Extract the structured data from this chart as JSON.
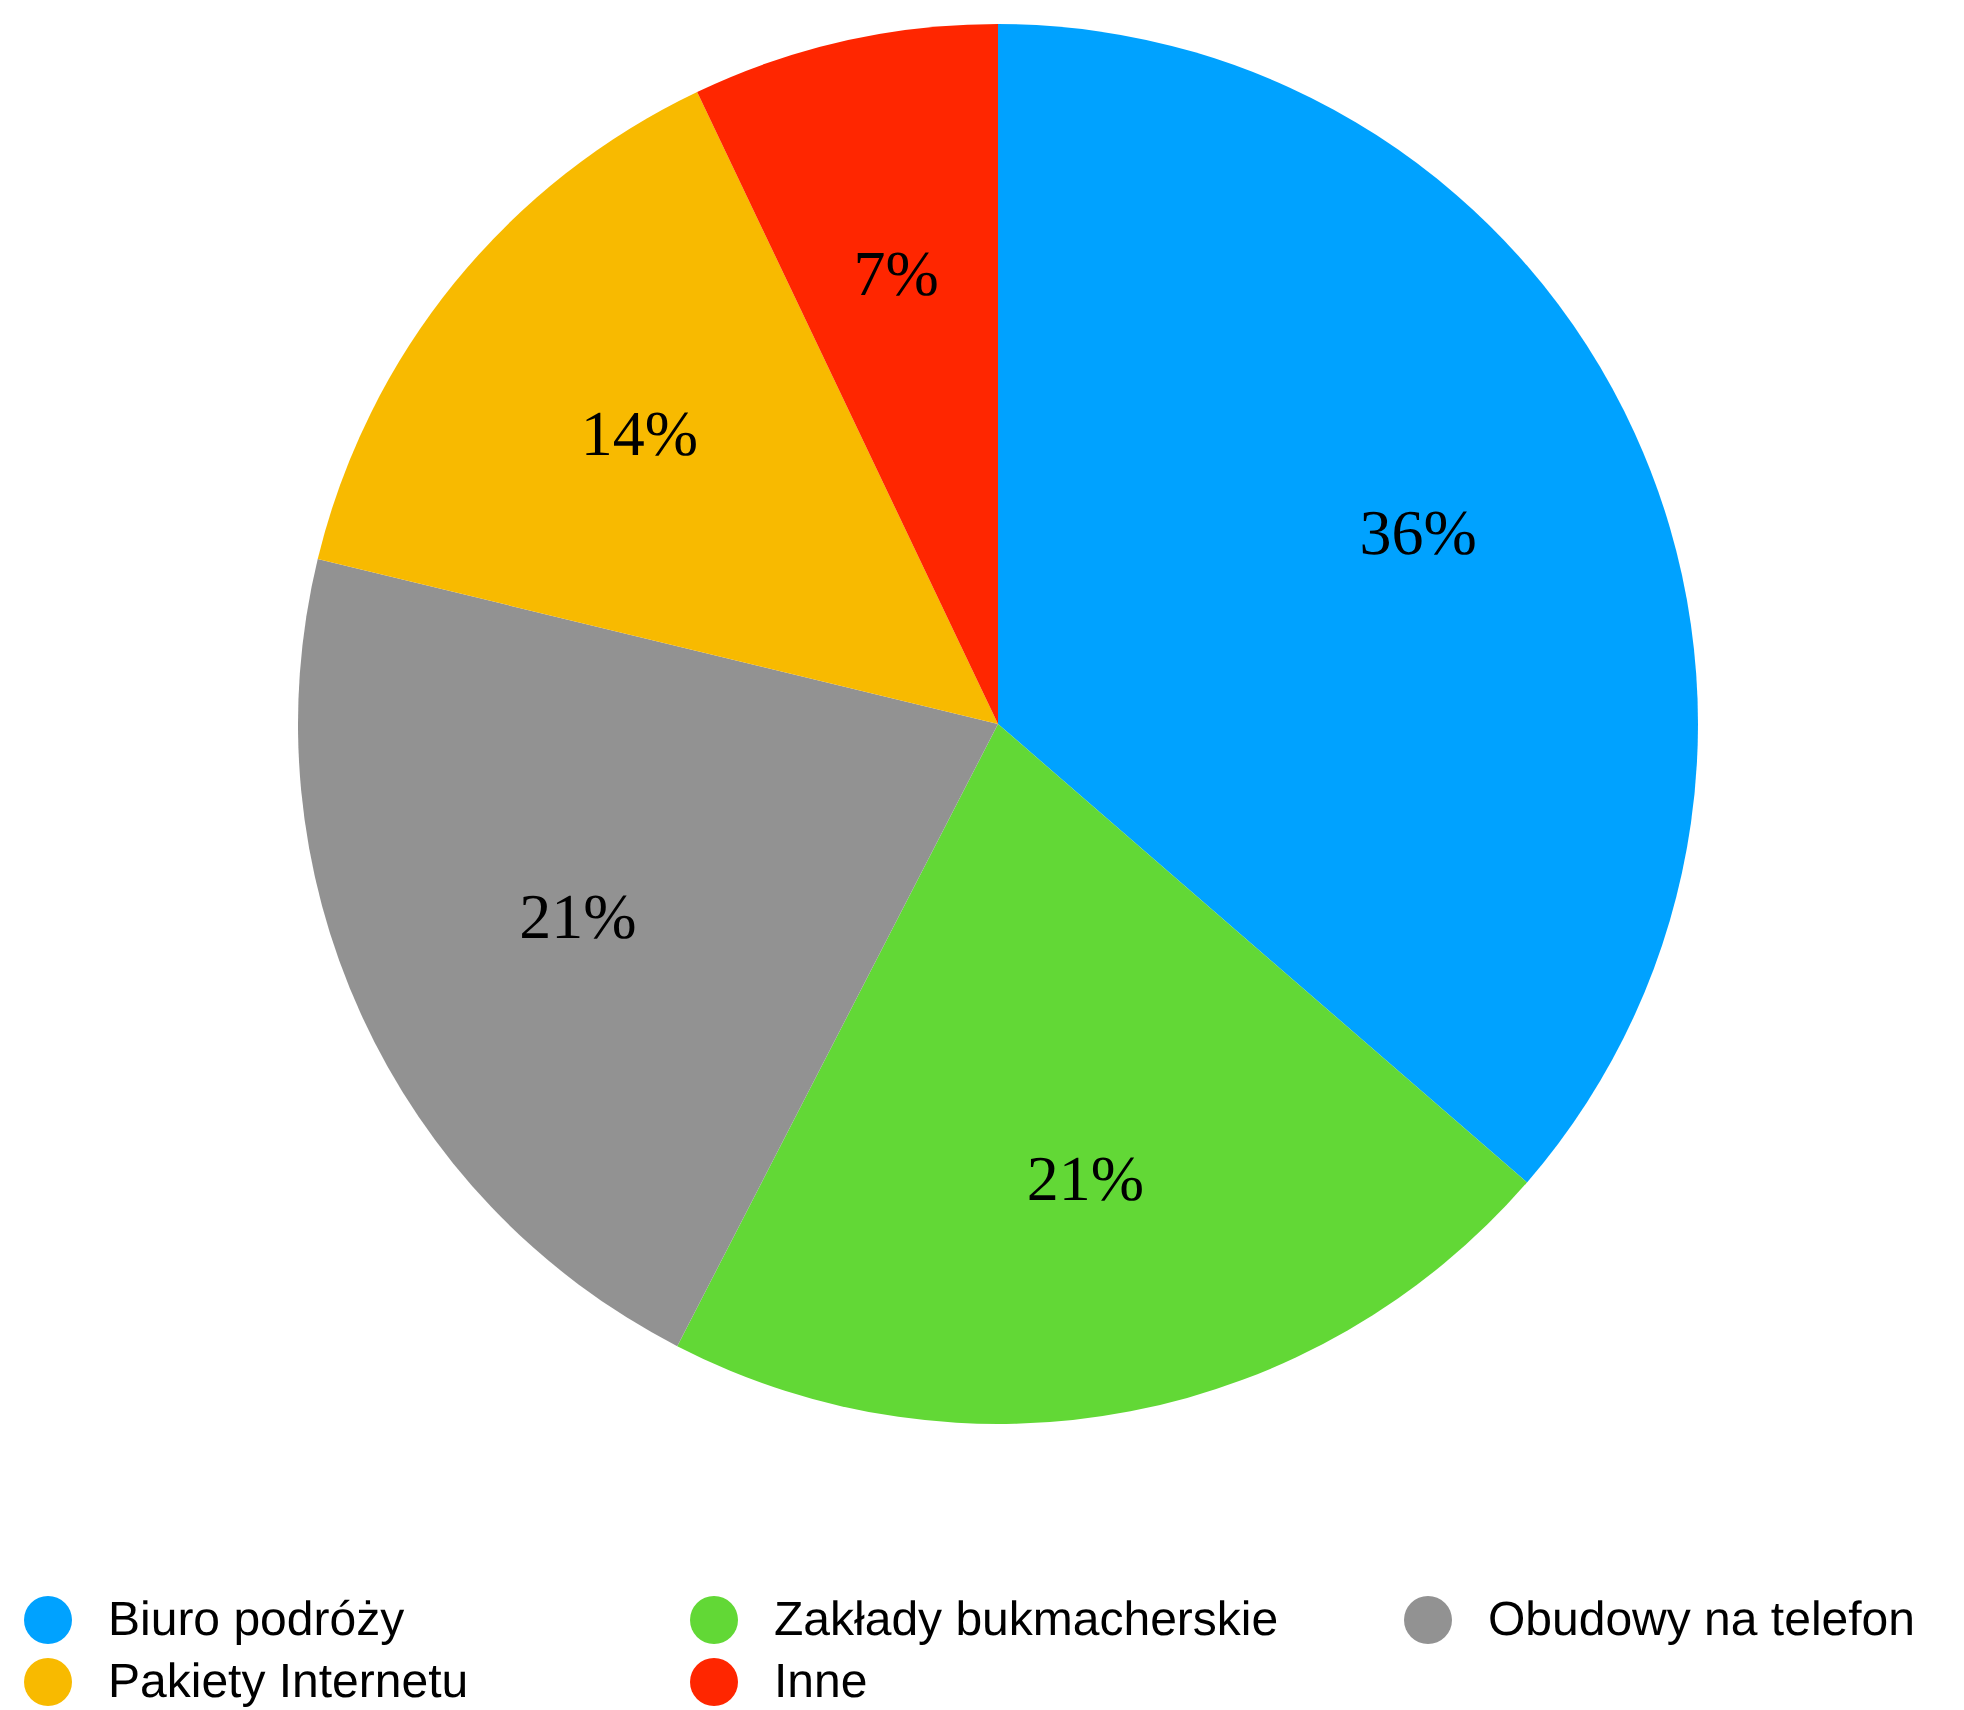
{
  "chart_data": {
    "type": "pie",
    "categories": [
      "Biuro podróży",
      "Zakłady bukmacherskie",
      "Obudowy na telefon",
      "Pakiety Internetu",
      "Inne"
    ],
    "values": [
      36,
      21,
      21,
      14,
      7
    ],
    "value_labels": [
      "36%",
      "21%",
      "21%",
      "14%",
      "7%"
    ],
    "colors": [
      "#00a2ff",
      "#62d836",
      "#929292",
      "#f8ba00",
      "#ff2600"
    ],
    "legend": "bottom"
  }
}
